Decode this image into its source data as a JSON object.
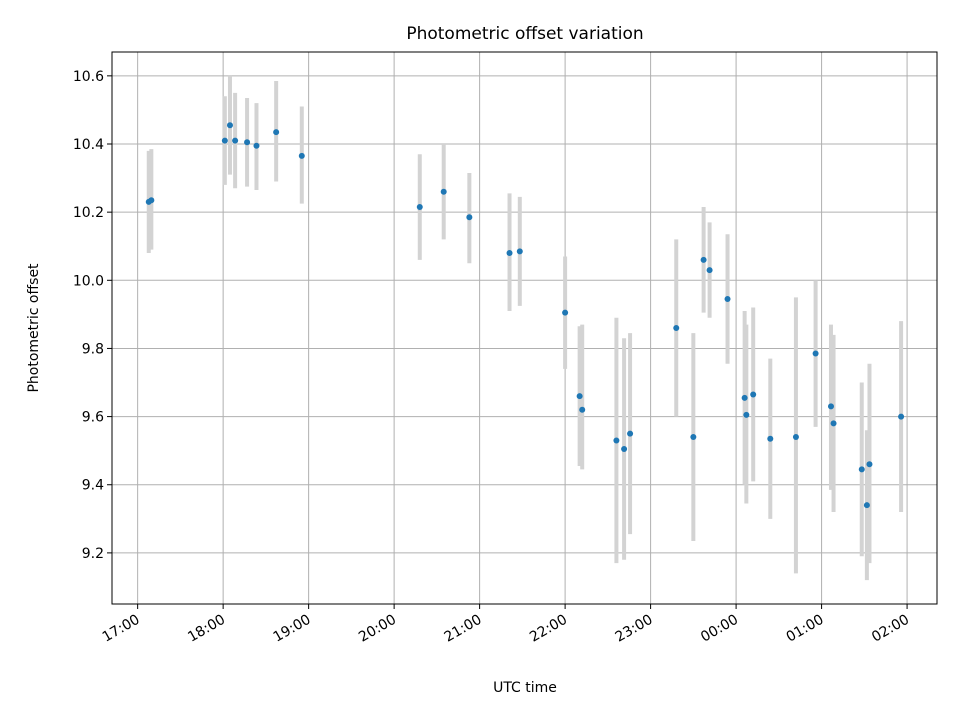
{
  "chart_data": {
    "type": "scatter",
    "title": "Photometric offset variation",
    "xlabel": "UTC time",
    "ylabel": "Photometric offset",
    "x_unit": "hours",
    "xlim": [
      16.7,
      26.35
    ],
    "ylim": [
      9.05,
      10.67
    ],
    "x_ticks": [
      {
        "value": 17,
        "label": "17:00"
      },
      {
        "value": 18,
        "label": "18:00"
      },
      {
        "value": 19,
        "label": "19:00"
      },
      {
        "value": 20,
        "label": "20:00"
      },
      {
        "value": 21,
        "label": "21:00"
      },
      {
        "value": 22,
        "label": "22:00"
      },
      {
        "value": 23,
        "label": "23:00"
      },
      {
        "value": 24,
        "label": "00:00"
      },
      {
        "value": 25,
        "label": "01:00"
      },
      {
        "value": 26,
        "label": "02:00"
      }
    ],
    "y_ticks": [
      {
        "value": 9.2,
        "label": "9.2"
      },
      {
        "value": 9.4,
        "label": "9.4"
      },
      {
        "value": 9.6,
        "label": "9.6"
      },
      {
        "value": 9.8,
        "label": "9.8"
      },
      {
        "value": 10.0,
        "label": "10.0"
      },
      {
        "value": 10.2,
        "label": "10.2"
      },
      {
        "value": 10.4,
        "label": "10.4"
      },
      {
        "value": 10.6,
        "label": "10.6"
      }
    ],
    "grid": true,
    "point_color": "#1f77b4",
    "errorbar_color": "#d3d3d3",
    "points": [
      {
        "x": 17.13,
        "y": 10.23,
        "lo": 10.08,
        "hi": 10.38
      },
      {
        "x": 17.16,
        "y": 10.235,
        "lo": 10.09,
        "hi": 10.385
      },
      {
        "x": 18.02,
        "y": 10.41,
        "lo": 10.28,
        "hi": 10.54
      },
      {
        "x": 18.08,
        "y": 10.455,
        "lo": 10.31,
        "hi": 10.6
      },
      {
        "x": 18.14,
        "y": 10.41,
        "lo": 10.27,
        "hi": 10.55
      },
      {
        "x": 18.28,
        "y": 10.405,
        "lo": 10.275,
        "hi": 10.535
      },
      {
        "x": 18.39,
        "y": 10.395,
        "lo": 10.265,
        "hi": 10.52
      },
      {
        "x": 18.62,
        "y": 10.435,
        "lo": 10.29,
        "hi": 10.585
      },
      {
        "x": 18.92,
        "y": 10.365,
        "lo": 10.225,
        "hi": 10.51
      },
      {
        "x": 20.3,
        "y": 10.215,
        "lo": 10.06,
        "hi": 10.37
      },
      {
        "x": 20.58,
        "y": 10.26,
        "lo": 10.12,
        "hi": 10.4
      },
      {
        "x": 20.88,
        "y": 10.185,
        "lo": 10.05,
        "hi": 10.315
      },
      {
        "x": 21.35,
        "y": 10.08,
        "lo": 9.91,
        "hi": 10.255
      },
      {
        "x": 21.47,
        "y": 10.085,
        "lo": 9.925,
        "hi": 10.245
      },
      {
        "x": 22.0,
        "y": 9.905,
        "lo": 9.74,
        "hi": 10.07
      },
      {
        "x": 22.17,
        "y": 9.66,
        "lo": 9.455,
        "hi": 9.865
      },
      {
        "x": 22.2,
        "y": 9.62,
        "lo": 9.445,
        "hi": 9.87
      },
      {
        "x": 22.6,
        "y": 9.53,
        "lo": 9.17,
        "hi": 9.89
      },
      {
        "x": 22.69,
        "y": 9.505,
        "lo": 9.18,
        "hi": 9.83
      },
      {
        "x": 22.76,
        "y": 9.55,
        "lo": 9.255,
        "hi": 9.845
      },
      {
        "x": 23.3,
        "y": 9.86,
        "lo": 9.6,
        "hi": 10.12
      },
      {
        "x": 23.5,
        "y": 9.54,
        "lo": 9.235,
        "hi": 9.845
      },
      {
        "x": 23.62,
        "y": 10.06,
        "lo": 9.905,
        "hi": 10.215
      },
      {
        "x": 23.69,
        "y": 10.03,
        "lo": 9.89,
        "hi": 10.17
      },
      {
        "x": 23.9,
        "y": 9.945,
        "lo": 9.755,
        "hi": 10.135
      },
      {
        "x": 24.1,
        "y": 9.655,
        "lo": 9.4,
        "hi": 9.91
      },
      {
        "x": 24.12,
        "y": 9.605,
        "lo": 9.345,
        "hi": 9.87
      },
      {
        "x": 24.2,
        "y": 9.665,
        "lo": 9.41,
        "hi": 9.92
      },
      {
        "x": 24.4,
        "y": 9.535,
        "lo": 9.3,
        "hi": 9.77
      },
      {
        "x": 24.7,
        "y": 9.54,
        "lo": 9.14,
        "hi": 9.95
      },
      {
        "x": 24.93,
        "y": 9.785,
        "lo": 9.57,
        "hi": 10.0
      },
      {
        "x": 25.11,
        "y": 9.63,
        "lo": 9.385,
        "hi": 9.87
      },
      {
        "x": 25.14,
        "y": 9.58,
        "lo": 9.32,
        "hi": 9.84
      },
      {
        "x": 25.47,
        "y": 9.445,
        "lo": 9.19,
        "hi": 9.7
      },
      {
        "x": 25.53,
        "y": 9.34,
        "lo": 9.12,
        "hi": 9.56
      },
      {
        "x": 25.56,
        "y": 9.46,
        "lo": 9.17,
        "hi": 9.755
      },
      {
        "x": 25.93,
        "y": 9.6,
        "lo": 9.32,
        "hi": 9.88
      }
    ]
  }
}
